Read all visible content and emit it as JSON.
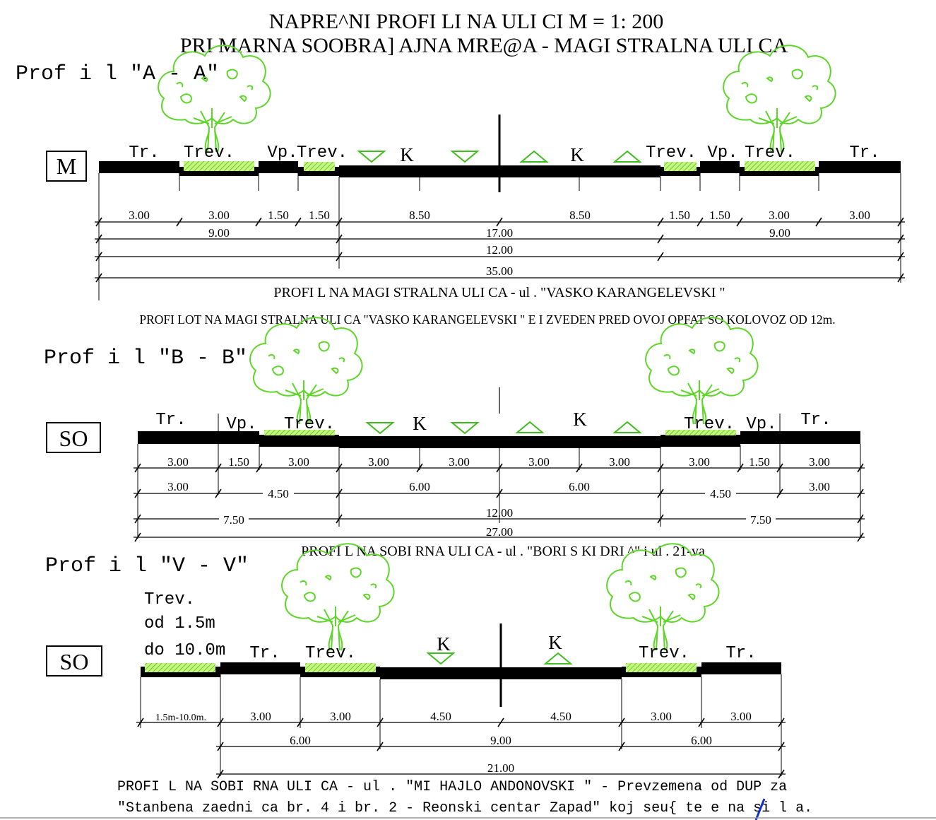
{
  "title": {
    "line1": "NAPRE^NI  PROFI LI  NA ULI CI    M = 1: 200",
    "line2": "PRI MARNA SOOBRA] AJNA MRE@A - MAGI STRALNA ULI CA"
  },
  "profile_a": {
    "name": "Prof i l  \"A - A\"",
    "class_box": "M",
    "segment_labels": [
      "Tr.",
      "Trev.",
      "Vp.",
      "Trev.",
      "K",
      "K",
      "Trev.",
      "Vp.",
      "Trev.",
      "Tr."
    ],
    "dims_row1": [
      "3.00",
      "3.00",
      "1.50",
      "1.50",
      "8.50",
      "8.50",
      "1.50",
      "1.50",
      "3.00",
      "3.00"
    ],
    "dims_row2": [
      "9.00",
      "17.00",
      "9.00"
    ],
    "dims_row3": [
      "12.00"
    ],
    "dims_row4": [
      "35.00"
    ],
    "caption": "PROFI L NA MAGI STRALNA ULI CA - ul . \"VASKO KARANGELEVSKI \"",
    "note": "PROFI LOT NA MAGI STRALNA ULI CA \"VASKO KARANGELEVSKI \" E I ZVEDEN PRED OVOJ OPFAT SO KOLOVOZ OD 12m."
  },
  "profile_b": {
    "name": "Prof i l  \"B - B\"",
    "class_box": "SO",
    "segment_labels": [
      "Tr.",
      "Vp.",
      "Trev.",
      "K",
      "K",
      "Trev.",
      "Vp.",
      "Tr."
    ],
    "dims_row1": [
      "3.00",
      "1.50",
      "3.00",
      "3.00",
      "3.00",
      "3.00",
      "3.00",
      "3.00",
      "1.50",
      "3.00"
    ],
    "dims_row2": [
      "3.00",
      "4.50",
      "6.00",
      "6.00",
      "4.50",
      "3.00"
    ],
    "dims_row3": [
      "7.50",
      "12.00",
      "7.50"
    ],
    "dims_row4": [
      "27.00"
    ],
    "caption": "PROFI L NA SOBI RNA ULI CA - ul . \"BORI S KI DRI ^\"  i  ul . 21-va"
  },
  "profile_v": {
    "name": "Prof i l  \"V - V\"",
    "class_box": "SO",
    "side_note": [
      "Trev.",
      "od 1.5m",
      "do 10.0m"
    ],
    "segment_labels": [
      "Tr.",
      "Trev.",
      "K",
      "K",
      "Trev.",
      "Tr."
    ],
    "dims_row1": [
      "1.5m-10.0m.",
      "3.00",
      "3.00",
      "4.50",
      "4.50",
      "3.00",
      "3.00"
    ],
    "dims_row2": [
      "6.00",
      "9.00",
      "6.00"
    ],
    "dims_row3": [
      "21.00"
    ],
    "caption_line1": "PROFI L NA SOBI RNA ULI CA - ul . \"MI HAJLO ANDONOVSKI \" - Prevzemena od DUP za",
    "caption_line2": "\"Stanbena zaedni ca br. 4 i  br. 2 - Reonski  centar Zapad\" koj seu{ te e na si l a."
  },
  "colors": {
    "ink": "#000000",
    "grass": "#b7f56a",
    "tree": "#5dd628",
    "triangle": "#3dbd1e",
    "annotation_stroke": "#1030d0"
  }
}
